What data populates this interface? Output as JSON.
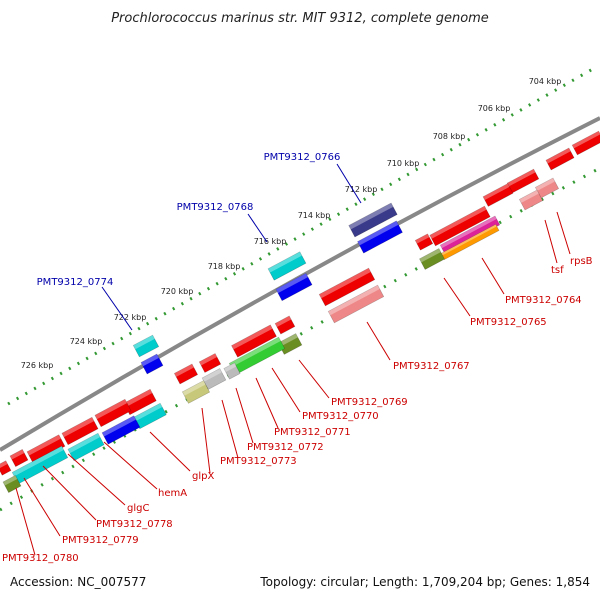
{
  "title": "Prochlorococcus marinus str. MIT 9312, complete genome",
  "footer": {
    "accession": "Accession: NC_007577",
    "summary": "Topology: circular; Length: 1,709,204 bp; Genes: 1,854"
  },
  "ruler_ticks": [
    "704 kbp",
    "706 kbp",
    "708 kbp",
    "710 kbp",
    "712 kbp",
    "714 kbp",
    "716 kbp",
    "718 kbp",
    "720 kbp",
    "722 kbp",
    "724 kbp",
    "726 kbp"
  ],
  "highlighted_labels": [
    "PMT9312_0766",
    "PMT9312_0768",
    "PMT9312_0774"
  ],
  "gene_labels": [
    "rpsB",
    "tsf",
    "PMT9312_0764",
    "PMT9312_0765",
    "PMT9312_0767",
    "PMT9312_0769",
    "PMT9312_0770",
    "PMT9312_0771",
    "PMT9312_0772",
    "PMT9312_0773",
    "glpX",
    "hemA",
    "glgC",
    "PMT9312_0778",
    "PMT9312_0779",
    "PMT9312_0780"
  ],
  "colors": {
    "cds": "#ee0000",
    "rna": "#ee8888",
    "highlight_forward": "#3a3a8a",
    "highlight_reverse": "#0000ee",
    "cyan": "#00cccc",
    "olive": "#6b8e23",
    "green": "#33cc33",
    "magenta": "#dd2299",
    "orange": "#ff9900",
    "khaki": "#c8c87a",
    "silver": "#bbbbbb",
    "dots": "#339933",
    "backbone": "#888888"
  }
}
